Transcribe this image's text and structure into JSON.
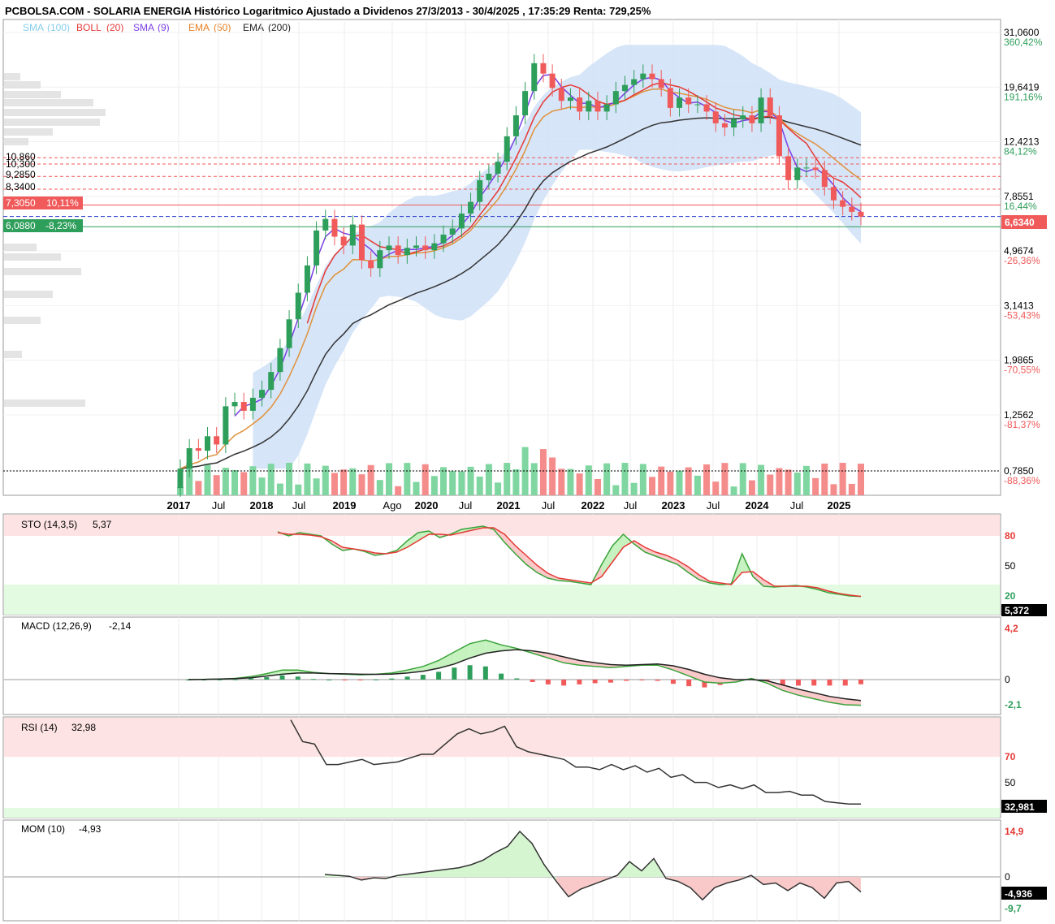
{
  "header": {
    "title": "PCBOLSA.COM - SOLARIA ENERGIA Histórico Logaritmico Ajustado a Dividenos 27/3/2013 - 30/4/2025 , 17:35:29 Renta: 729,25%"
  },
  "legend": [
    {
      "label": "SMA",
      "param": "(100)",
      "color": "#87CEEB"
    },
    {
      "label": "BOLL",
      "param": "(20)",
      "color": "#e53935"
    },
    {
      "label": "SMA",
      "param": "(9)",
      "color": "#7b3fe4"
    },
    {
      "label": "EMA",
      "param": "(50)",
      "color": "#e67e22"
    },
    {
      "label": "EMA",
      "param": "(200)",
      "color": "#222222"
    }
  ],
  "colors": {
    "up": "#2e9e5b",
    "down": "#f05a5a",
    "band": "#cfe0f7",
    "sma9": "#7b3fe4",
    "boll": "#e53935",
    "ema50": "#e0913a",
    "ema200": "#333333"
  },
  "chart_data": [
    {
      "type": "candlestick",
      "title": "SOLARIA ENERGIA",
      "scale": "log",
      "price_axis": [
        {
          "value": "31,0600",
          "pct": "360,42%"
        },
        {
          "value": "19,6419",
          "pct": "191,16%"
        },
        {
          "value": "12,4213",
          "pct": "84,12%"
        },
        {
          "value": "7,8551",
          "pct": "16,44%"
        },
        {
          "value": "4,9674",
          "pct": "-26,36%"
        },
        {
          "value": "3,1413",
          "pct": "-53,43%"
        },
        {
          "value": "1,9865",
          "pct": "-70,55%"
        },
        {
          "value": "1,2562",
          "pct": "-81,37%"
        },
        {
          "value": "0,7850",
          "pct": "-88,36%"
        }
      ],
      "levels_left": [
        "10,860",
        "10,300",
        "9,2850",
        "8,3400"
      ],
      "level_boxes": [
        {
          "value": "7,3050",
          "pct": "10,11%"
        },
        {
          "value": "6,0880",
          "pct": "-8,23%"
        }
      ],
      "last_price": "6,6340",
      "x_labels": [
        "2017",
        "Jul",
        "2018",
        "Jul",
        "2019",
        "Ago",
        "2020",
        "Jul",
        "2021",
        "Jul",
        "2022",
        "Jul",
        "2023",
        "Jul",
        "2024",
        "Jul",
        "2025"
      ],
      "x_bold": [
        true,
        false,
        true,
        false,
        true,
        false,
        true,
        false,
        true,
        false,
        true,
        false,
        true,
        false,
        true,
        false,
        true
      ],
      "closes": [
        0.8,
        0.95,
        0.93,
        1.05,
        0.98,
        1.35,
        1.4,
        1.3,
        1.45,
        1.55,
        1.8,
        2.2,
        2.8,
        3.5,
        4.4,
        5.9,
        6.5,
        5.6,
        5.2,
        6.2,
        4.6,
        4.3,
        5.0,
        5.2,
        4.8,
        5.1,
        5.2,
        5.0,
        5.3,
        5.7,
        6.0,
        6.8,
        7.5,
        9.0,
        9.5,
        10.5,
        13.0,
        15.5,
        19.0,
        24.0,
        22.0,
        19.5,
        17.5,
        18.0,
        16.0,
        17.5,
        16.0,
        17.0,
        19.0,
        20.0,
        21.0,
        22.0,
        21.0,
        19.5,
        16.5,
        18.0,
        17.0,
        17.0,
        16.0,
        14.5,
        14.0,
        15.0,
        15.5,
        14.5,
        18.0,
        15.5,
        11.0,
        9.0,
        10.0,
        10.0,
        9.8,
        8.5,
        7.6,
        7.2,
        6.9,
        6.63
      ]
    },
    {
      "type": "line",
      "title": "STO (14,3,5)",
      "last": "5,37",
      "badge": "5,372",
      "y_ticks": [
        "80",
        "50",
        "20"
      ],
      "values": [
        85,
        80,
        84,
        82,
        80,
        70,
        62,
        64,
        61,
        56,
        58,
        62,
        74,
        84,
        86,
        78,
        82,
        88,
        90,
        92,
        88,
        72,
        58,
        45,
        35,
        28,
        25,
        24,
        22,
        20,
        45,
        68,
        82,
        70,
        60,
        55,
        50,
        45,
        35,
        26,
        22,
        20,
        21,
        58,
        30,
        18,
        17,
        18,
        19,
        17,
        14,
        10,
        8,
        6,
        5.37
      ],
      "signal": [
        84,
        82,
        82,
        81,
        79,
        74,
        66,
        64,
        62,
        59,
        58,
        60,
        66,
        74,
        82,
        82,
        81,
        84,
        87,
        90,
        90,
        82,
        68,
        56,
        44,
        34,
        28,
        26,
        24,
        22,
        30,
        48,
        66,
        74,
        66,
        60,
        56,
        50,
        42,
        32,
        24,
        22,
        20,
        35,
        36,
        26,
        18,
        18,
        18,
        18,
        16,
        12,
        9,
        7,
        5.5
      ]
    },
    {
      "type": "line",
      "title": "MACD (12,26,9)",
      "last": "-2,14",
      "y_ticks": [
        "4,2",
        "0",
        "-2,1"
      ],
      "macd": [
        0.0,
        0.02,
        0.05,
        0.1,
        0.25,
        0.5,
        0.8,
        0.8,
        0.6,
        0.5,
        0.45,
        0.4,
        0.45,
        0.55,
        0.8,
        1.1,
        1.6,
        2.3,
        3.0,
        3.3,
        2.9,
        2.6,
        2.2,
        1.8,
        1.4,
        1.2,
        1.1,
        1.0,
        1.1,
        1.2,
        1.2,
        0.8,
        0.3,
        -0.2,
        -0.3,
        -0.2,
        0.1,
        -0.3,
        -0.9,
        -1.3,
        -1.6,
        -1.9,
        -2.1,
        -2.14
      ],
      "signal": [
        0.0,
        0.02,
        0.04,
        0.08,
        0.15,
        0.3,
        0.45,
        0.55,
        0.55,
        0.5,
        0.48,
        0.45,
        0.44,
        0.46,
        0.55,
        0.7,
        0.95,
        1.3,
        1.8,
        2.2,
        2.4,
        2.5,
        2.4,
        2.2,
        1.9,
        1.6,
        1.4,
        1.25,
        1.2,
        1.25,
        1.3,
        1.15,
        0.85,
        0.45,
        0.15,
        0.0,
        0.0,
        -0.1,
        -0.45,
        -0.8,
        -1.1,
        -1.4,
        -1.6,
        -1.75
      ],
      "histogram": [
        0,
        0,
        0.01,
        0.02,
        0.1,
        0.2,
        0.35,
        0.25,
        0.05,
        0,
        -0.03,
        -0.05,
        0.01,
        0.09,
        0.25,
        0.4,
        0.65,
        1.0,
        1.2,
        1.1,
        0.5,
        0.1,
        -0.2,
        -0.4,
        -0.5,
        -0.4,
        -0.3,
        -0.25,
        -0.1,
        -0.05,
        -0.1,
        -0.35,
        -0.55,
        -0.65,
        -0.45,
        -0.2,
        0.1,
        -0.2,
        -0.45,
        -0.5,
        -0.5,
        -0.5,
        -0.5,
        -0.39
      ]
    },
    {
      "type": "line",
      "title": "RSI (14)",
      "last": "32,98",
      "badge": "32,981",
      "y_ticks": [
        "70",
        "50"
      ],
      "values": [
        99,
        82,
        80,
        64,
        64,
        66,
        68,
        64,
        65,
        66,
        69,
        72,
        72,
        80,
        88,
        92,
        88,
        90,
        94,
        78,
        74,
        72,
        70,
        68,
        62,
        62,
        60,
        64,
        60,
        63,
        58,
        61,
        54,
        56,
        50,
        50,
        46,
        48,
        45,
        48,
        42,
        42,
        43,
        40,
        40,
        35,
        34,
        33,
        32.98
      ]
    },
    {
      "type": "line",
      "title": "MOM (10)",
      "last": "-4,93",
      "badge": "-4,936",
      "y_ticks": [
        "14,9",
        "0",
        "-9,7"
      ],
      "values": [
        0.8,
        0.5,
        0.2,
        -1.0,
        -0.3,
        -0.5,
        0.5,
        1.0,
        1.5,
        2.0,
        2.5,
        3.0,
        4.0,
        5.5,
        8.0,
        10.0,
        14.9,
        11.0,
        4.0,
        -1.5,
        -6.5,
        -4.0,
        -2.5,
        -1.0,
        0.5,
        5.0,
        2.0,
        6.0,
        -0.5,
        -1.5,
        -3.5,
        -7.5,
        -3.5,
        -2.0,
        -1.0,
        0.5,
        -2.5,
        -2.0,
        -4.5,
        -2.0,
        -3.5,
        -7.0,
        -2.0,
        -1.5,
        -4.936
      ]
    }
  ]
}
